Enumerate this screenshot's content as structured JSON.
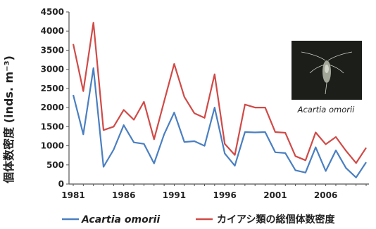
{
  "chart_data": {
    "type": "line",
    "ylabel": "個体数密度 (inds. m⁻³)",
    "ylim": [
      0,
      4500
    ],
    "yticks": [
      0,
      500,
      1000,
      1500,
      2000,
      2500,
      3000,
      3500,
      4000,
      4500
    ],
    "xlim": [
      1981,
      2010
    ],
    "xticks": [
      1981,
      1986,
      1991,
      1996,
      2001,
      2006
    ],
    "grid": false,
    "legend": "bottom",
    "x": [
      1981,
      1982,
      1983,
      1984,
      1985,
      1986,
      1987,
      1988,
      1989,
      1990,
      1991,
      1992,
      1993,
      1994,
      1995,
      1996,
      1997,
      1998,
      1999,
      2000,
      2001,
      2002,
      2003,
      2004,
      2005,
      2006,
      2007,
      2008,
      2009,
      2010
    ],
    "series": [
      {
        "name": "Acartia omorii",
        "color": "#4a7fc1",
        "values": [
          2330,
          1300,
          3030,
          450,
          900,
          1540,
          1090,
          1050,
          540,
          1300,
          1870,
          1100,
          1120,
          1000,
          2000,
          800,
          480,
          1360,
          1350,
          1360,
          830,
          810,
          360,
          300,
          960,
          340,
          880,
          420,
          170,
          570
        ]
      },
      {
        "name": "カイアシ類の総個体数密度",
        "color": "#d04a47",
        "values": [
          3660,
          2430,
          4220,
          1410,
          1500,
          1940,
          1680,
          2150,
          1170,
          2160,
          3140,
          2280,
          1850,
          1730,
          2870,
          1050,
          760,
          2080,
          2000,
          2000,
          1360,
          1340,
          730,
          620,
          1350,
          1040,
          1230,
          870,
          550,
          950
        ]
      }
    ]
  },
  "photo": {
    "caption": "Acartia omorii"
  }
}
